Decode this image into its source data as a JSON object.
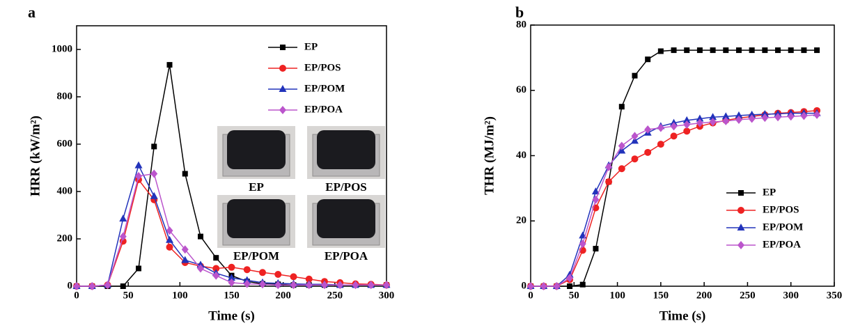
{
  "chart_data": [
    {
      "type": "line",
      "panel": "a",
      "x_label": "Time (s)",
      "y_label": "HRR (kW/m²)",
      "xlim": [
        0,
        300
      ],
      "xticks": [
        0,
        50,
        100,
        150,
        200,
        250,
        300
      ],
      "ylim": [
        0,
        1100
      ],
      "yticks": [
        0,
        200,
        400,
        600,
        800,
        1000
      ],
      "legend": "upper right",
      "x": [
        0,
        15,
        30,
        45,
        60,
        75,
        90,
        105,
        120,
        135,
        150,
        165,
        180,
        195,
        210,
        225,
        240,
        255,
        270,
        285,
        300
      ],
      "series": [
        {
          "name": "EP",
          "color": "#000000",
          "marker": "square",
          "values": [
            0,
            0,
            0,
            0,
            75,
            590,
            935,
            475,
            210,
            120,
            45,
            20,
            10,
            8,
            5,
            5,
            5,
            5,
            5,
            5,
            5
          ]
        },
        {
          "name": "EP/POS",
          "color": "#ee2222",
          "marker": "circle",
          "values": [
            0,
            0,
            5,
            190,
            450,
            365,
            165,
            100,
            85,
            75,
            80,
            70,
            58,
            50,
            40,
            30,
            20,
            15,
            10,
            8,
            5
          ]
        },
        {
          "name": "EP/POM",
          "color": "#2233bb",
          "marker": "triangle",
          "values": [
            0,
            0,
            5,
            285,
            510,
            380,
            195,
            110,
            90,
            55,
            35,
            25,
            15,
            12,
            10,
            8,
            8,
            5,
            5,
            5,
            5
          ]
        },
        {
          "name": "EP/POA",
          "color": "#bb55cc",
          "marker": "diamond",
          "values": [
            0,
            0,
            5,
            210,
            465,
            475,
            235,
            155,
            75,
            45,
            15,
            10,
            8,
            5,
            5,
            5,
            5,
            5,
            5,
            5,
            5
          ]
        }
      ],
      "insets": [
        "EP",
        "EP/POS",
        "EP/POM",
        "EP/POA"
      ]
    },
    {
      "type": "line",
      "panel": "b",
      "x_label": "Time (s)",
      "y_label": "THR (MJ/m²)",
      "xlim": [
        0,
        350
      ],
      "xticks": [
        0,
        50,
        100,
        150,
        200,
        250,
        300,
        350
      ],
      "ylim": [
        0,
        80
      ],
      "yticks": [
        0,
        20,
        40,
        60,
        80
      ],
      "legend": "lower right",
      "x": [
        0,
        15,
        30,
        45,
        60,
        75,
        90,
        105,
        120,
        135,
        150,
        165,
        180,
        195,
        210,
        225,
        240,
        255,
        270,
        285,
        300,
        315,
        330
      ],
      "series": [
        {
          "name": "EP",
          "color": "#000000",
          "marker": "square",
          "values": [
            0,
            0,
            0,
            0,
            0.5,
            11.5,
            32,
            55,
            64.5,
            69.5,
            72,
            72.3,
            72.3,
            72.3,
            72.3,
            72.3,
            72.3,
            72.3,
            72.3,
            72.3,
            72.3,
            72.3,
            72.3
          ]
        },
        {
          "name": "EP/POS",
          "color": "#ee2222",
          "marker": "circle",
          "values": [
            0,
            0,
            0,
            2,
            11,
            24,
            32,
            36,
            39,
            41,
            43.5,
            46,
            47.5,
            49,
            50,
            50.8,
            51.5,
            52,
            52.5,
            53,
            53.2,
            53.5,
            53.8
          ]
        },
        {
          "name": "EP/POM",
          "color": "#2233bb",
          "marker": "triangle",
          "values": [
            0,
            0,
            0,
            3.5,
            15.5,
            29,
            37,
            41.5,
            44.5,
            47,
            49,
            50,
            50.8,
            51.3,
            51.8,
            52,
            52.3,
            52.5,
            52.7,
            52.8,
            53,
            53,
            53
          ]
        },
        {
          "name": "EP/POA",
          "color": "#bb55cc",
          "marker": "diamond",
          "values": [
            0,
            0,
            0,
            2.5,
            13,
            26.5,
            36.5,
            43,
            46,
            48,
            48.5,
            49,
            49.5,
            50,
            50.3,
            50.6,
            51,
            51.3,
            51.6,
            51.8,
            52,
            52.2,
            52.5
          ]
        }
      ]
    }
  ]
}
